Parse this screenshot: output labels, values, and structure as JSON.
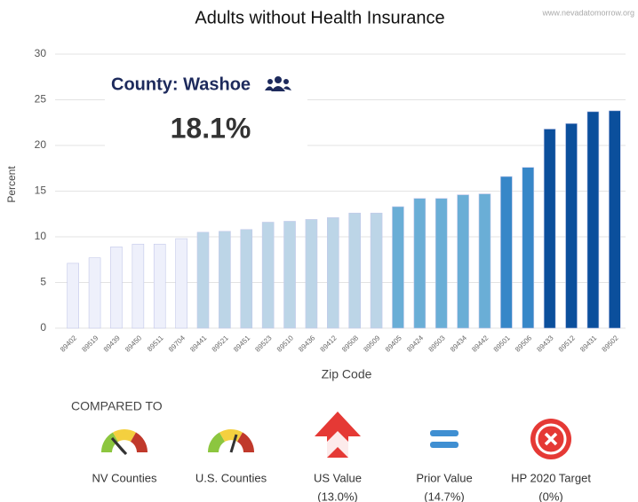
{
  "chart_data": {
    "type": "bar",
    "title": "Adults without Health Insurance",
    "source": "www.nevadatomorrow.org",
    "x_label": "Zip Code",
    "y_label": "Percent",
    "categories": [
      "89402",
      "89519",
      "89439",
      "89450",
      "89511",
      "89704",
      "89441",
      "89521",
      "89451",
      "89523",
      "89510",
      "89436",
      "89412",
      "89508",
      "89509",
      "89405",
      "89424",
      "89503",
      "89434",
      "89442",
      "89501",
      "89506",
      "89433",
      "89512",
      "89431",
      "89502"
    ],
    "values": [
      7.1,
      7.7,
      8.9,
      9.2,
      9.2,
      9.8,
      10.5,
      10.6,
      10.8,
      11.6,
      11.7,
      11.9,
      12.1,
      12.6,
      12.6,
      13.3,
      14.2,
      14.2,
      14.6,
      14.7,
      16.6,
      17.6,
      21.8,
      22.4,
      23.7,
      23.8
    ],
    "colors": [
      "#eef0fb",
      "#eef0fb",
      "#eef0fb",
      "#eef0fb",
      "#eef0fb",
      "#eef0fb",
      "#bcd5e7",
      "#bcd5e7",
      "#bcd5e7",
      "#bcd5e7",
      "#bcd5e7",
      "#bcd5e7",
      "#bcd5e7",
      "#bcd5e7",
      "#bcd5e7",
      "#6aaed6",
      "#6aaed6",
      "#6aaed6",
      "#6aaed6",
      "#6aaed6",
      "#3787c8",
      "#3787c8",
      "#0b4f9c",
      "#0b4f9c",
      "#0b4f9c",
      "#0b4f9c"
    ],
    "ylim": [
      0,
      30
    ],
    "yticks": [
      0,
      5,
      10,
      15,
      20,
      25,
      30
    ],
    "grid": true
  },
  "county": {
    "label": "County: Washoe",
    "value": "18.1%"
  },
  "compared_to": {
    "title": "COMPARED TO",
    "items": [
      {
        "label": "NV Counties"
      },
      {
        "label": "U.S. Counties"
      },
      {
        "label": "US Value",
        "value": "(13.0%)"
      },
      {
        "label": "Prior Value",
        "value": "(14.7%)"
      },
      {
        "label": "HP 2020 Target",
        "value": "(0%)"
      }
    ]
  }
}
